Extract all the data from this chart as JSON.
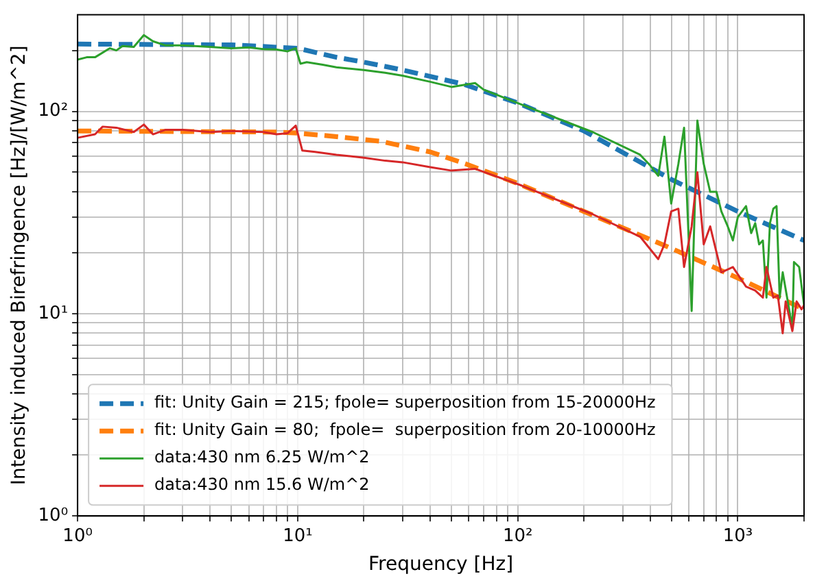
{
  "chart_data": {
    "type": "line",
    "xlabel": "Frequency [Hz]",
    "ylabel": "Intensity induced Birefringence [Hz]/[W/m^2]",
    "log": "xy",
    "grid": true,
    "legend": "bottom left",
    "marker": "none",
    "xlim": [
      1,
      2000
    ],
    "ylim": [
      1,
      300
    ],
    "xticks": [
      {
        "value": 1,
        "label": "10⁰"
      },
      {
        "value": 2,
        "label": null
      },
      {
        "value": 3,
        "label": null
      },
      {
        "value": 4,
        "label": null
      },
      {
        "value": 5,
        "label": null
      },
      {
        "value": 6,
        "label": null
      },
      {
        "value": 7,
        "label": null
      },
      {
        "value": 8,
        "label": null
      },
      {
        "value": 9,
        "label": null
      },
      {
        "value": 10,
        "label": "10¹"
      },
      {
        "value": 20,
        "label": null
      },
      {
        "value": 30,
        "label": null
      },
      {
        "value": 40,
        "label": null
      },
      {
        "value": 50,
        "label": null
      },
      {
        "value": 60,
        "label": null
      },
      {
        "value": 70,
        "label": null
      },
      {
        "value": 80,
        "label": null
      },
      {
        "value": 90,
        "label": null
      },
      {
        "value": 100,
        "label": "10²"
      },
      {
        "value": 200,
        "label": null
      },
      {
        "value": 300,
        "label": null
      },
      {
        "value": 400,
        "label": null
      },
      {
        "value": 500,
        "label": null
      },
      {
        "value": 600,
        "label": null
      },
      {
        "value": 700,
        "label": null
      },
      {
        "value": 800,
        "label": null
      },
      {
        "value": 900,
        "label": null
      },
      {
        "value": 1000,
        "label": "10³"
      },
      {
        "value": 2000,
        "label": null
      }
    ],
    "yticks": [
      {
        "value": 1,
        "label": "10⁰"
      },
      {
        "value": 2,
        "label": null
      },
      {
        "value": 3,
        "label": null
      },
      {
        "value": 4,
        "label": null
      },
      {
        "value": 5,
        "label": null
      },
      {
        "value": 6,
        "label": null
      },
      {
        "value": 7,
        "label": null
      },
      {
        "value": 8,
        "label": null
      },
      {
        "value": 9,
        "label": null
      },
      {
        "value": 10,
        "label": "10¹"
      },
      {
        "value": 20,
        "label": null
      },
      {
        "value": 30,
        "label": null
      },
      {
        "value": 40,
        "label": null
      },
      {
        "value": 50,
        "label": null
      },
      {
        "value": 60,
        "label": null
      },
      {
        "value": 70,
        "label": null
      },
      {
        "value": 80,
        "label": null
      },
      {
        "value": 90,
        "label": null
      },
      {
        "value": 100,
        "label": "10²"
      },
      {
        "value": 200,
        "label": null
      }
    ],
    "series": [
      {
        "name": "fit: Unity Gain = 215; fpole= superposition from 15-20000Hz",
        "color": "#1f77b4",
        "line_style": "dashed",
        "x": [
          1,
          5,
          10,
          15,
          20,
          30,
          57,
          100,
          200,
          500,
          1000,
          2000
        ],
        "values": [
          215,
          213,
          205,
          185,
          175,
          160,
          136,
          110,
          80,
          46,
          32,
          23
        ]
      },
      {
        "name": "fit: Unity Gain = 80;  fpole=  superposition from 20-10000Hz",
        "color": "#ff7f0e",
        "line_style": "dashed",
        "x": [
          1,
          8,
          10,
          15,
          24,
          40,
          58,
          100,
          200,
          500,
          1000,
          2000
        ],
        "values": [
          80,
          79,
          78,
          75,
          71,
          63,
          55,
          44,
          32,
          21,
          15,
          10.5
        ]
      },
      {
        "name": "data:430 nm 6.25 W/m^2",
        "color": "#2ca02c",
        "line_style": "solid",
        "x": [
          1,
          1.1,
          1.2,
          1.4,
          1.5,
          1.6,
          1.8,
          2,
          2.2,
          2.5,
          3,
          4,
          5,
          6,
          7,
          8,
          9,
          9.8,
          10.3,
          11,
          13,
          15,
          20,
          25,
          30,
          40,
          50,
          64,
          70,
          104,
          219,
          360,
          400,
          435,
          464,
          498,
          537,
          570,
          617,
          655,
          700,
          749,
          800,
          842,
          900,
          950,
          1000,
          1090,
          1150,
          1200,
          1250,
          1300,
          1350,
          1400,
          1450,
          1500,
          1550,
          1600,
          1770,
          1800,
          1900,
          2000
        ],
        "values": [
          180,
          185,
          185,
          205,
          200,
          210,
          208,
          238,
          222,
          212,
          212,
          208,
          205,
          207,
          203,
          202,
          198,
          205,
          172,
          175,
          170,
          165,
          160,
          155,
          150,
          140,
          132,
          138,
          128,
          108,
          79,
          61,
          54,
          48,
          75,
          35,
          55,
          83,
          10.3,
          90,
          55,
          40,
          40,
          32,
          27,
          23,
          30,
          34,
          25,
          28,
          22,
          23,
          12,
          28,
          33,
          34,
          12,
          16,
          8.5,
          18,
          17,
          11
        ]
      },
      {
        "name": "data:430 nm 15.6 W/m^2",
        "color": "#d62728",
        "line_style": "solid",
        "x": [
          1,
          1.2,
          1.3,
          1.5,
          1.8,
          2,
          2.2,
          2.5,
          3,
          4,
          5,
          7,
          8,
          9,
          9.8,
          10.5,
          12,
          15,
          20,
          25,
          30,
          40,
          49.6,
          64,
          104,
          219,
          360,
          435,
          464,
          498,
          537,
          570,
          617,
          655,
          700,
          749,
          842,
          950,
          1090,
          1200,
          1300,
          1350,
          1450,
          1520,
          1600,
          1650,
          1770,
          1850,
          1950,
          2000
        ],
        "values": [
          74,
          77,
          84,
          83,
          79,
          86,
          77,
          81,
          81,
          79,
          80,
          79,
          77,
          78,
          85,
          64,
          63,
          61,
          59,
          57,
          56,
          53,
          51,
          52,
          43,
          31,
          24,
          18.6,
          22,
          32,
          33,
          17,
          27,
          50,
          22,
          27,
          16,
          17,
          13.6,
          13,
          12,
          17,
          12,
          12.3,
          8,
          11.5,
          8.2,
          11.5,
          10.5,
          11
        ]
      }
    ]
  }
}
